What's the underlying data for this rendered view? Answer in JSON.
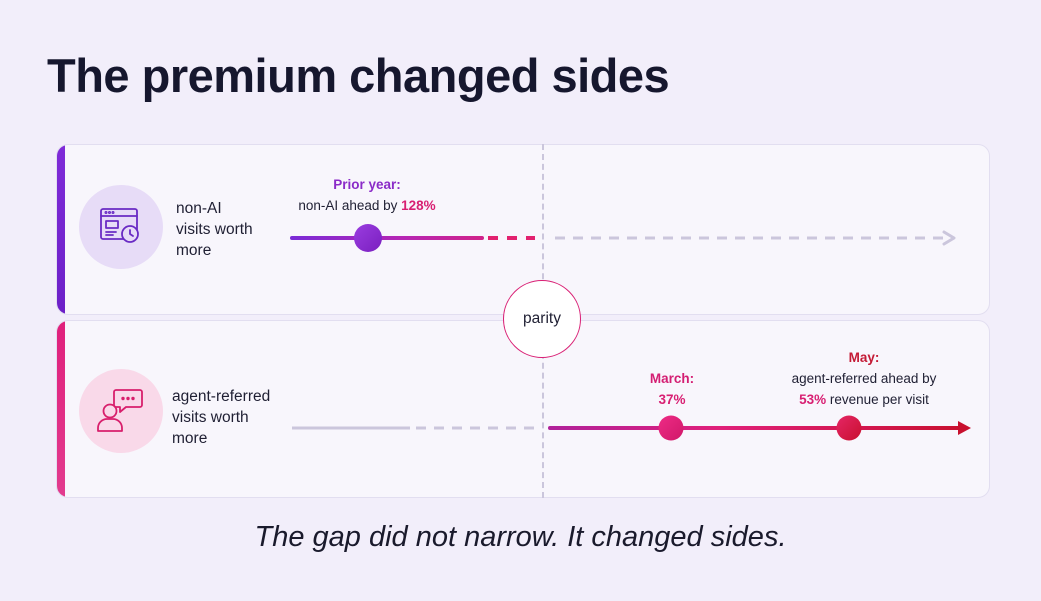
{
  "title": "The premium changed sides",
  "colors": {
    "purple": "#7f2bd8",
    "pink": "#e0207c",
    "red": "#c8102e",
    "grey": "#cbc6dc"
  },
  "top_row": {
    "icon": "browser-window-clock-icon",
    "label_lines": [
      "non-AI",
      "visits worth",
      "more"
    ],
    "annotation": {
      "head": "Prior year:",
      "text_prefix": "non-AI ahead by ",
      "highlight": "128%"
    }
  },
  "parity_label": "parity",
  "bottom_row": {
    "icon": "person-chat-bubble-icon",
    "label_lines": [
      "agent-referred",
      "visits worth",
      "more"
    ],
    "march": {
      "head": "March:",
      "value": "37%"
    },
    "may": {
      "head": "May:",
      "line1": "agent-referred ahead by",
      "highlight": "53%",
      "line2_suffix": " revenue per visit"
    }
  },
  "caption": "The gap did not narrow. It changed sides."
}
